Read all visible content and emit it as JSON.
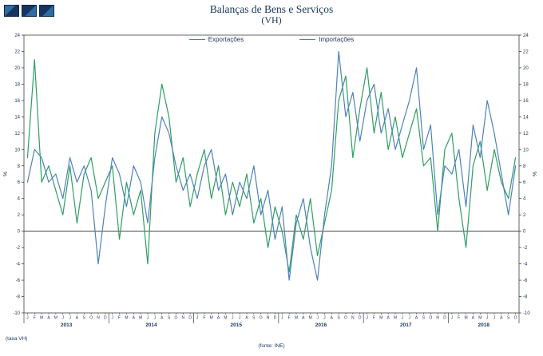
{
  "chart_data": {
    "type": "line",
    "title": "Balanças de Bens e Serviços",
    "subtitle": "(VH)",
    "ylabel": "%",
    "ylabel_right": "%",
    "footnote_left": "(taxa VH)",
    "footnote_source": "(fonte: INE)",
    "ylim": [
      -10,
      24
    ],
    "ytick_step": 2,
    "grid": false,
    "legend_position": "top-center",
    "axis_color": "#404040",
    "zero_line_color": "#404040",
    "text_color": "#17365d",
    "month_letters": [
      "J",
      "F",
      "M",
      "A",
      "M",
      "J",
      "J",
      "A",
      "S",
      "O",
      "N",
      "D"
    ],
    "years": [
      {
        "label": "2013",
        "months": 12
      },
      {
        "label": "2014",
        "months": 12
      },
      {
        "label": "2015",
        "months": 12
      },
      {
        "label": "2016",
        "months": 12
      },
      {
        "label": "2017",
        "months": 12
      },
      {
        "label": "2018",
        "months": 10
      }
    ],
    "series": [
      {
        "name": "Exportações",
        "color": "#2f9e64",
        "values": [
          9,
          21,
          6,
          8,
          5,
          2,
          8,
          1,
          7,
          9,
          4,
          6,
          8,
          -1,
          6,
          2,
          5,
          -4,
          12,
          18,
          14,
          6,
          9,
          3,
          7,
          10,
          4,
          8,
          2,
          6,
          3,
          7,
          1,
          4,
          -2,
          3,
          0,
          -5,
          2,
          -1,
          4,
          -3,
          1,
          5,
          16,
          19,
          9,
          15,
          20,
          12,
          17,
          10,
          14,
          9,
          12,
          15,
          8,
          9,
          0,
          10,
          12,
          4,
          -2,
          8,
          11,
          5,
          10,
          6,
          4,
          9
        ]
      },
      {
        "name": "Importações",
        "color": "#4f81bd",
        "values": [
          6,
          10,
          9,
          6,
          7,
          4,
          9,
          6,
          8,
          5,
          -4,
          3,
          9,
          7,
          3,
          8,
          6,
          1,
          9,
          14,
          12,
          8,
          5,
          7,
          4,
          8,
          10,
          5,
          7,
          2,
          6,
          4,
          8,
          2,
          5,
          -1,
          3,
          -6,
          1,
          4,
          -2,
          -6,
          2,
          8,
          22,
          14,
          17,
          11,
          16,
          18,
          12,
          15,
          10,
          13,
          16,
          20,
          10,
          13,
          2,
          8,
          7,
          10,
          3,
          13,
          9,
          16,
          12,
          7,
          2,
          8
        ]
      }
    ]
  }
}
